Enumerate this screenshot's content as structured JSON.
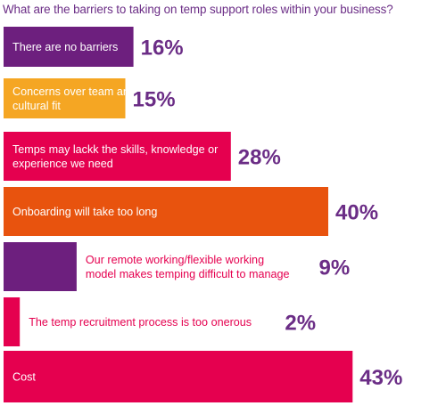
{
  "chart_data": {
    "type": "bar",
    "orientation": "horizontal",
    "title": "What are the barriers to taking on temp support roles within your business?",
    "xlabel": "",
    "ylabel": "",
    "grid": false,
    "legend": "none",
    "bars": [
      {
        "label": [
          "There are no barriers"
        ],
        "value": 16,
        "value_label": "16%",
        "color": "#6d1f7e"
      },
      {
        "label": [
          "Concerns over team and",
          "cultural fit"
        ],
        "value": 15,
        "value_label": "15%",
        "color": "#f5a623"
      },
      {
        "label": [
          "Temps may lackk the skills, knowledge or",
          "experience we need"
        ],
        "value": 28,
        "value_label": "28%",
        "color": "#e5004f"
      },
      {
        "label": [
          "Onboarding will take too long"
        ],
        "value": 40,
        "value_label": "40%",
        "color": "#e8530e"
      },
      {
        "label": [
          "Our remote working/flexible working",
          "model makes temping difficult to manage"
        ],
        "value": 9,
        "value_label": "9%",
        "color": "#6d1f7e"
      },
      {
        "label": [
          "The temp recruitment process is too onerous"
        ],
        "value": 2,
        "value_label": "2%",
        "color": "#e5004f"
      },
      {
        "label": [
          "Cost"
        ],
        "value": 43,
        "value_label": "43%",
        "color": "#e5004f"
      }
    ],
    "value_label_color": "#6b2d86",
    "bar_text_color": "#ffffff",
    "inside_text_on_light_color": "#ffffff",
    "outside_text_color": "#e5004f"
  }
}
